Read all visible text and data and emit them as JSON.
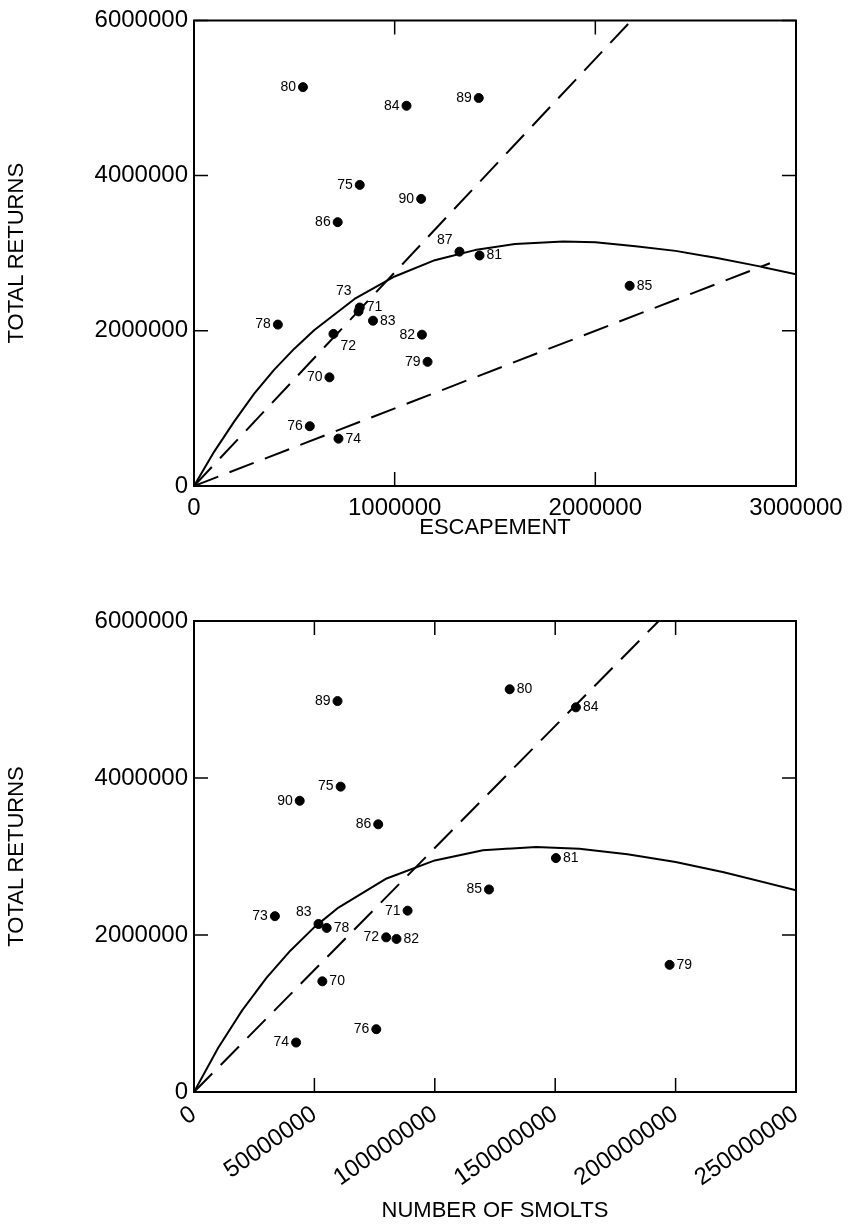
{
  "chart_data": [
    {
      "type": "scatter",
      "xlabel": "ESCAPEMENT",
      "ylabel": "TOTAL RETURNS",
      "xlim": [
        0,
        3000000
      ],
      "xticks": [
        0,
        1000000,
        2000000,
        3000000
      ],
      "ylim": [
        0,
        6000000
      ],
      "yticks": [
        0,
        2000000,
        4000000,
        6000000
      ],
      "grid": false,
      "legend": false,
      "marker": "circle",
      "series": [
        {
          "type": "scatter",
          "color": "#000000",
          "x": [
            675000,
            826000,
            695000,
            820000,
            720000,
            826000,
            577000,
            418000,
            1164000,
            543000,
            1423000,
            1136000,
            892000,
            1059000,
            2171000,
            716000,
            1323000,
            1419000,
            1132000
          ],
          "values": [
            1400000,
            2300000,
            1960000,
            2250000,
            610000,
            3880000,
            770000,
            2080000,
            1600000,
            5140000,
            2970000,
            1950000,
            2130000,
            4900000,
            2580000,
            3400000,
            3020000,
            5000000,
            3700000
          ]
        },
        {
          "type": "line",
          "color": "#000000",
          "line_style": "solid",
          "marker": "none",
          "x": [
            0,
            100000,
            200000,
            300000,
            400000,
            500000,
            600000,
            800000,
            1000000,
            1200000,
            1400000,
            1600000,
            1840000,
            2000000,
            2200000,
            2400000,
            2600000,
            2800000,
            3000000
          ],
          "values": [
            0,
            440000,
            830000,
            1190000,
            1500000,
            1770000,
            2010000,
            2410000,
            2700000,
            2910000,
            3040000,
            3120000,
            3150000,
            3140000,
            3090000,
            3030000,
            2940000,
            2840000,
            2730000
          ]
        },
        {
          "type": "line",
          "color": "#000000",
          "line_style": "dashed",
          "marker": "none",
          "x": [
            0,
            2180000
          ],
          "values": [
            0,
            6000000
          ]
        },
        {
          "type": "line",
          "color": "#000000",
          "line_style": "dashed",
          "marker": "none",
          "x": [
            0,
            2870000
          ],
          "values": [
            0,
            2870000
          ]
        }
      ],
      "annotations": [
        {
          "text": "70",
          "x": 675000,
          "y": 1400000
        },
        {
          "text": "71",
          "x": 826000,
          "y": 2300000
        },
        {
          "text": "72",
          "x": 695000,
          "y": 1960000
        },
        {
          "text": "73",
          "x": 820000,
          "y": 2250000
        },
        {
          "text": "74",
          "x": 720000,
          "y": 610000
        },
        {
          "text": "75",
          "x": 826000,
          "y": 3880000
        },
        {
          "text": "76",
          "x": 577000,
          "y": 770000
        },
        {
          "text": "78",
          "x": 418000,
          "y": 2080000
        },
        {
          "text": "79",
          "x": 1164000,
          "y": 1600000
        },
        {
          "text": "80",
          "x": 543000,
          "y": 5140000
        },
        {
          "text": "81",
          "x": 1423000,
          "y": 2970000
        },
        {
          "text": "82",
          "x": 1136000,
          "y": 1950000
        },
        {
          "text": "83",
          "x": 892000,
          "y": 2130000
        },
        {
          "text": "84",
          "x": 1059000,
          "y": 4900000
        },
        {
          "text": "85",
          "x": 2171000,
          "y": 2580000
        },
        {
          "text": "86",
          "x": 716000,
          "y": 3400000
        },
        {
          "text": "87",
          "x": 1323000,
          "y": 3020000
        },
        {
          "text": "89",
          "x": 1419000,
          "y": 5000000
        },
        {
          "text": "90",
          "x": 1132000,
          "y": 3700000
        }
      ]
    },
    {
      "type": "scatter",
      "xlabel": "NUMBER OF SMOLTS",
      "ylabel": "TOTAL RETURNS",
      "xlim": [
        0,
        250000000
      ],
      "xticks": [
        0,
        50000000,
        100000000,
        150000000,
        200000000,
        250000000
      ],
      "ylim": [
        0,
        6000000
      ],
      "yticks": [
        0,
        2000000,
        4000000,
        6000000
      ],
      "grid": false,
      "legend": false,
      "marker": "circle",
      "series": [
        {
          "type": "scatter",
          "color": "#000000",
          "x": [
            53300000,
            88700000,
            79800000,
            33600000,
            42400000,
            60900000,
            75700000,
            55100000,
            197500000,
            131100000,
            150300000,
            84100000,
            51700000,
            158600000,
            122500000,
            76500000,
            59600000,
            43900000
          ],
          "values": [
            1410000,
            2310000,
            1970000,
            2240000,
            630000,
            3890000,
            800000,
            2090000,
            1620000,
            5130000,
            2980000,
            1950000,
            2140000,
            4900000,
            2580000,
            3410000,
            4980000,
            3710000
          ]
        },
        {
          "type": "line",
          "color": "#000000",
          "line_style": "solid",
          "marker": "none",
          "x": [
            0,
            10000000,
            20000000,
            30000000,
            40000000,
            50000000,
            60000000,
            80000000,
            100000000,
            120000000,
            142000000,
            160000000,
            180000000,
            200000000,
            220000000,
            250000000
          ],
          "values": [
            0,
            560000,
            1040000,
            1450000,
            1800000,
            2100000,
            2350000,
            2720000,
            2950000,
            3080000,
            3120000,
            3100000,
            3030000,
            2930000,
            2800000,
            2570000
          ]
        },
        {
          "type": "line",
          "color": "#000000",
          "line_style": "dashed",
          "marker": "none",
          "x": [
            0,
            193000000
          ],
          "values": [
            0,
            6000000
          ]
        }
      ],
      "annotations": [
        {
          "text": "70",
          "x": 53300000,
          "y": 1410000
        },
        {
          "text": "71",
          "x": 88700000,
          "y": 2310000
        },
        {
          "text": "72",
          "x": 79800000,
          "y": 1970000
        },
        {
          "text": "73",
          "x": 33600000,
          "y": 2240000
        },
        {
          "text": "74",
          "x": 42400000,
          "y": 630000
        },
        {
          "text": "75",
          "x": 60900000,
          "y": 3890000
        },
        {
          "text": "76",
          "x": 75700000,
          "y": 800000
        },
        {
          "text": "78",
          "x": 55100000,
          "y": 2090000
        },
        {
          "text": "79",
          "x": 197500000,
          "y": 1620000
        },
        {
          "text": "80",
          "x": 131100000,
          "y": 5130000
        },
        {
          "text": "81",
          "x": 150300000,
          "y": 2980000
        },
        {
          "text": "82",
          "x": 84100000,
          "y": 1950000
        },
        {
          "text": "83",
          "x": 51700000,
          "y": 2140000
        },
        {
          "text": "84",
          "x": 158600000,
          "y": 4900000
        },
        {
          "text": "85",
          "x": 122500000,
          "y": 2580000
        },
        {
          "text": "86",
          "x": 76500000,
          "y": 3410000
        },
        {
          "text": "89",
          "x": 59600000,
          "y": 4980000
        },
        {
          "text": "90",
          "x": 43900000,
          "y": 3710000
        }
      ]
    }
  ]
}
